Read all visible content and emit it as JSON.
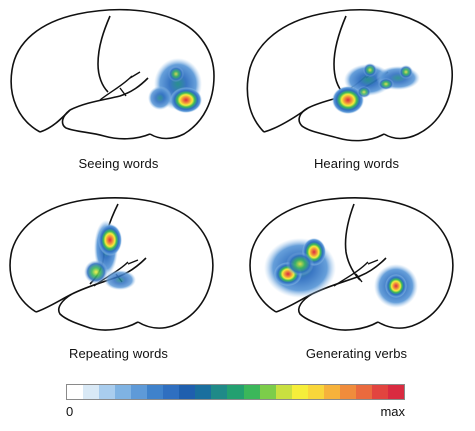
{
  "panels": [
    {
      "label": "Seeing words"
    },
    {
      "label": "Hearing words"
    },
    {
      "label": "Repeating words"
    },
    {
      "label": "Generating verbs"
    }
  ],
  "colorbar": {
    "min_label": "0",
    "max_label": "max",
    "colors": [
      "#ffffff",
      "#d9e9f6",
      "#a9cdee",
      "#7fb3e3",
      "#5e9ad8",
      "#3f82cb",
      "#2f6fc0",
      "#1f5fae",
      "#1a6f9e",
      "#1f8a88",
      "#23a070",
      "#3bb75a",
      "#7ccd4a",
      "#c9e040",
      "#f6ee3a",
      "#f9d63a",
      "#f6b23b",
      "#f08c3c",
      "#ea6a3e",
      "#e2443f",
      "#d92b40"
    ]
  }
}
